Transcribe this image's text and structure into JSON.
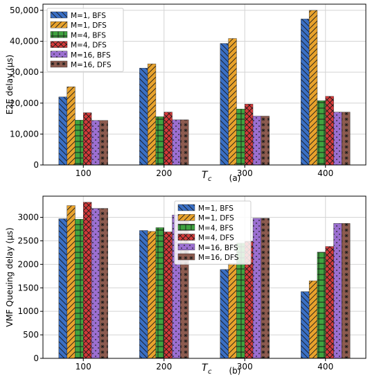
{
  "colors": {
    "m1_bfs": "#3A6FC4",
    "m1_dfs": "#E8A22C",
    "m4_bfs": "#3FA33F",
    "m4_dfs": "#D33A3A",
    "m16_bfs": "#9B6FD0",
    "m16_dfs": "#8C5B4F"
  },
  "chart_data": [
    {
      "type": "bar",
      "panel_label": "(a)",
      "xlabel": "T",
      "xlabel_sub": "c",
      "ylabel": "E2E delay (μs)",
      "categories": [
        "100",
        "200",
        "300",
        "400"
      ],
      "ylim": [
        0,
        52000
      ],
      "yticks": [
        "0",
        "10,000",
        "20,000",
        "30,000",
        "40,000",
        "50,000"
      ],
      "ytick_values": [
        0,
        10000,
        20000,
        30000,
        40000,
        50000
      ],
      "grid": true,
      "legend_position": "top-left",
      "series": [
        {
          "name": "M=1, BFS",
          "values": [
            22000,
            31300,
            39300,
            47200
          ]
        },
        {
          "name": "M=1, DFS",
          "values": [
            25300,
            32700,
            40900,
            50000
          ]
        },
        {
          "name": "M=4, BFS",
          "values": [
            14500,
            15600,
            18100,
            20800
          ]
        },
        {
          "name": "M=4, DFS",
          "values": [
            16900,
            17100,
            19700,
            22200
          ]
        },
        {
          "name": "M=16, BFS",
          "values": [
            14400,
            14600,
            15800,
            17100
          ]
        },
        {
          "name": "M=16, DFS",
          "values": [
            14400,
            14600,
            15800,
            17100
          ]
        }
      ]
    },
    {
      "type": "bar",
      "panel_label": "(b)",
      "xlabel": "T",
      "xlabel_sub": "c",
      "ylabel": "VMF Queuing delay (μs)",
      "categories": [
        "100",
        "200",
        "300",
        "400"
      ],
      "ylim": [
        0,
        3450
      ],
      "yticks": [
        "0",
        "500",
        "1000",
        "1500",
        "2000",
        "2500",
        "3000"
      ],
      "ytick_values": [
        0,
        500,
        1000,
        1500,
        2000,
        2500,
        3000
      ],
      "grid": true,
      "legend_position": "top-center",
      "series": [
        {
          "name": "M=1, BFS",
          "values": [
            2970,
            2720,
            1890,
            1420
          ]
        },
        {
          "name": "M=1, DFS",
          "values": [
            3250,
            2700,
            2020,
            1650
          ]
        },
        {
          "name": "M=4, BFS",
          "values": [
            2960,
            2780,
            2450,
            2260
          ]
        },
        {
          "name": "M=4, DFS",
          "values": [
            3320,
            2690,
            2490,
            2380
          ]
        },
        {
          "name": "M=16, BFS",
          "values": [
            3190,
            3050,
            2980,
            2870
          ]
        },
        {
          "name": "M=16, DFS",
          "values": [
            3190,
            3050,
            2980,
            2870
          ]
        }
      ]
    }
  ]
}
